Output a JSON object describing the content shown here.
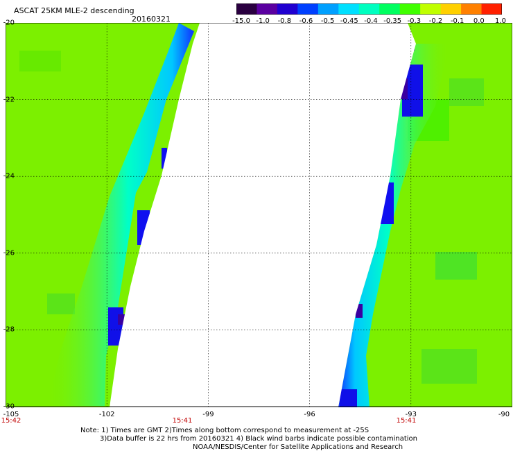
{
  "header": {
    "title": "ASCAT 25KM MLE-2 descending",
    "date": "20160321"
  },
  "colorbar": {
    "labels": [
      "-15.0",
      "-1.0",
      "-0.8",
      "-0.6",
      "-0.5",
      "-0.45",
      "-0.4",
      "-0.35",
      "-0.3",
      "-0.2",
      "-0.1",
      "0.0",
      "1.0"
    ],
    "colors": [
      "#2a0040",
      "#5a00a0",
      "#2000d0",
      "#0040ff",
      "#00a0ff",
      "#00e0ff",
      "#00ffc0",
      "#00ff60",
      "#40ff00",
      "#c0ff00",
      "#ffd000",
      "#ff8000",
      "#ff2000"
    ]
  },
  "map": {
    "lon_labels": [
      "-105",
      "-102",
      "-99",
      "-96",
      "-93",
      "-90"
    ],
    "lat_labels": [
      "-20",
      "-22",
      "-24",
      "-26",
      "-28",
      "-30"
    ],
    "time_labels": [
      "15:42",
      "15:41",
      "15:41"
    ],
    "colors": {
      "background_green": "#7cf000",
      "swath_gap": "#ffffff",
      "grid": "#000000",
      "time": "#c00000"
    }
  },
  "notes": {
    "line1": "Note: 1) Times are GMT 2)Times along bottom correspond to measurement at -25S",
    "line2": "3)Data buffer is 22 hrs from 20160321 4) Black wind barbs indicate possible contamination",
    "line3": "NOAA/NESDIS/Center for Satellite Applications and Research"
  }
}
